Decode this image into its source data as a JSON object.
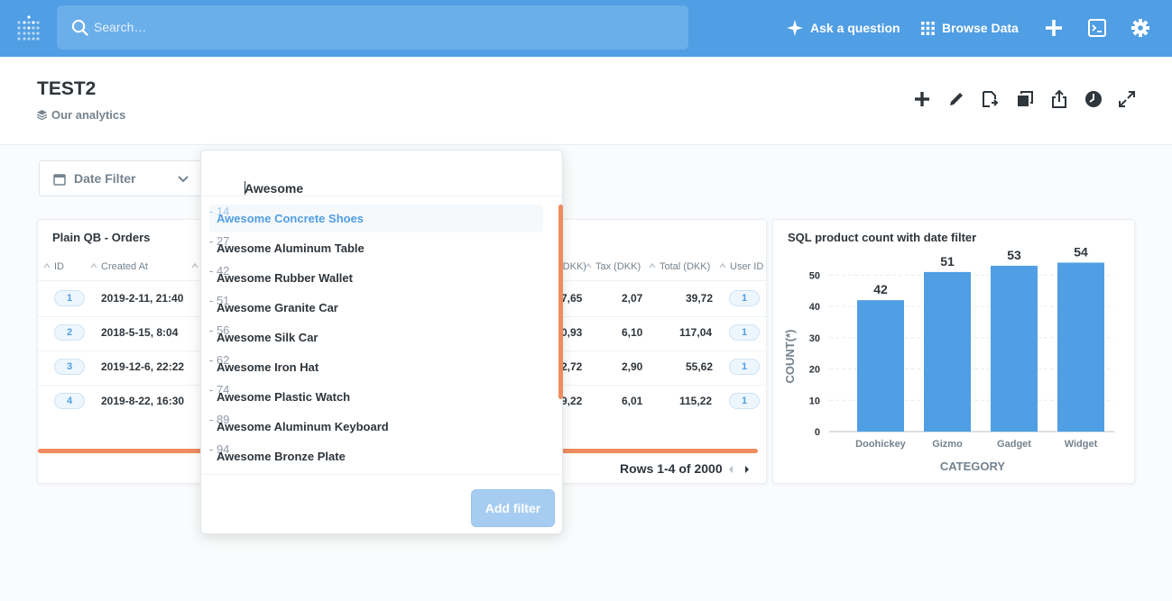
{
  "nav": {
    "search_placeholder": "Search…",
    "ask_question": "Ask a question",
    "browse_data": "Browse Data"
  },
  "header": {
    "title": "TEST2",
    "collection": "Our analytics"
  },
  "date_filter": {
    "label": "Date Filter"
  },
  "orders_card": {
    "title": "Plain QB - Orders",
    "columns_left": [
      "ID",
      "Created At"
    ],
    "columns_right": [
      "(DKK)",
      "Tax (DKK)",
      "Total (DKK)",
      "User ID"
    ],
    "rows": [
      {
        "id": "1",
        "created": "2019-2-11, 21:40",
        "partial": "7,65",
        "tax": "2,07",
        "total": "39,72",
        "user": "1"
      },
      {
        "id": "2",
        "created": "2018-5-15, 8:04",
        "partial": "0,93",
        "tax": "6,10",
        "total": "117,04",
        "user": "1"
      },
      {
        "id": "3",
        "created": "2019-12-6, 22:22",
        "partial": "2,72",
        "tax": "2,90",
        "total": "55,62",
        "user": "1"
      },
      {
        "id": "4",
        "created": "2019-8-22, 16:30",
        "partial": "9,22",
        "tax": "6,01",
        "total": "115,22",
        "user": "1"
      }
    ],
    "rows_info": "Rows 1-4 of 2000"
  },
  "sql_card": {
    "title": "SQL product count with date filter"
  },
  "chart_data": {
    "type": "bar",
    "categories": [
      "Doohickey",
      "Gizmo",
      "Gadget",
      "Widget"
    ],
    "values": [
      42,
      51,
      53,
      54
    ],
    "xlabel": "CATEGORY",
    "ylabel": "COUNT(*)",
    "ylim": [
      0,
      55
    ],
    "yticks": [
      0,
      10,
      20,
      30,
      40,
      50
    ],
    "color": "#509ee3",
    "grid": true
  },
  "popover": {
    "input_value": "Awesome",
    "options": [
      {
        "name": "Awesome Concrete Shoes",
        "count": "14",
        "selected": true
      },
      {
        "name": "Awesome Aluminum Table",
        "count": "27"
      },
      {
        "name": "Awesome Rubber Wallet",
        "count": "42"
      },
      {
        "name": "Awesome Granite Car",
        "count": "51"
      },
      {
        "name": "Awesome Silk Car",
        "count": "56"
      },
      {
        "name": "Awesome Iron Hat",
        "count": "62"
      },
      {
        "name": "Awesome Plastic Watch",
        "count": "74"
      },
      {
        "name": "Awesome Aluminum Keyboard",
        "count": "89"
      },
      {
        "name": "Awesome Bronze Plate",
        "count": "94"
      }
    ],
    "count_separator": " - ",
    "add_filter": "Add filter"
  },
  "colors": {
    "brand": "#509ee3",
    "accent_orange": "#ef8c5f"
  }
}
